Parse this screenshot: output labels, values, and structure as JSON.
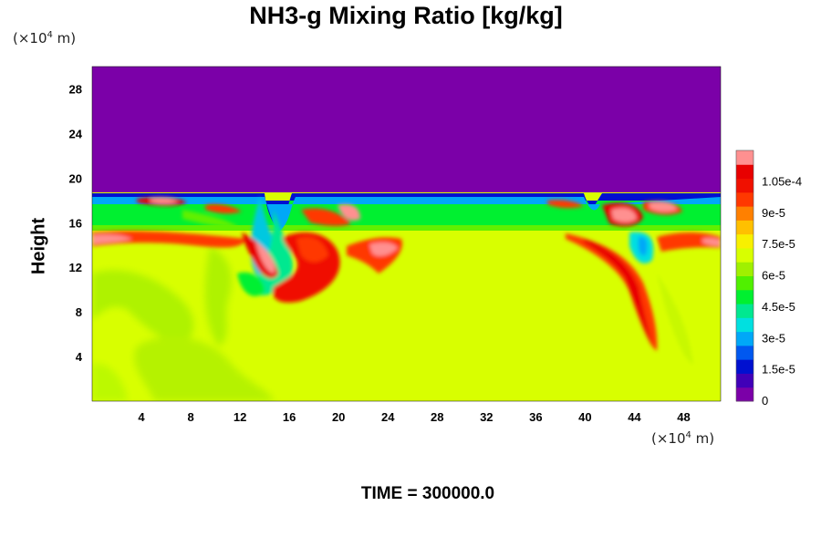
{
  "title": "NH3-g Mixing Ratio [kg/kg]",
  "y_unit": {
    "prefix": "(×10",
    "exp": "4",
    "suffix": " m)"
  },
  "x_unit": {
    "prefix": "(×10",
    "exp": "4",
    "suffix": " m)"
  },
  "footer": "TIME = 300000.0",
  "chart_data": {
    "type": "heatmap",
    "title": "NH3-g Mixing Ratio [kg/kg]",
    "xlabel": "",
    "ylabel": "Height",
    "x_unit": "(×10^4 m)",
    "y_unit": "(×10^4 m)",
    "xlim": [
      0,
      51
    ],
    "ylim": [
      0,
      30
    ],
    "x_ticks": [
      4,
      8,
      12,
      16,
      20,
      24,
      28,
      32,
      36,
      40,
      44,
      48
    ],
    "y_ticks": [
      4,
      8,
      12,
      16,
      20,
      24,
      28
    ],
    "colorbar": {
      "range": [
        0,
        0.00012
      ],
      "tick_values": [
        0,
        1.5e-05,
        3e-05,
        4.5e-05,
        6e-05,
        7.5e-05,
        9e-05,
        0.000105
      ],
      "tick_labels": [
        "0",
        "1.5e-5",
        "3e-5",
        "4.5e-5",
        "6e-5",
        "7.5e-5",
        "9e-5",
        "1.05e-4"
      ],
      "colors": [
        "#7b00a8",
        "#4000b8",
        "#0010d0",
        "#0058f0",
        "#00a8f8",
        "#00e0e0",
        "#00e890",
        "#00f030",
        "#50f000",
        "#a0f000",
        "#d8ff00",
        "#f8f000",
        "#ffc000",
        "#ff8000",
        "#ff3800",
        "#f01000",
        "#e80000",
        "#ff9090"
      ]
    },
    "regions": [
      {
        "desc": "upper layer",
        "y_range": [
          18,
          30
        ],
        "value": 0.0
      },
      {
        "desc": "transition band",
        "y_range": [
          17,
          18.5
        ],
        "value": 3e-05
      },
      {
        "desc": "green band",
        "y_range": [
          15,
          17.5
        ],
        "value": 5.5e-05
      },
      {
        "desc": "lower layer",
        "y_range": [
          0,
          15
        ],
        "value": 7.7e-05
      }
    ],
    "time": 300000.0
  }
}
